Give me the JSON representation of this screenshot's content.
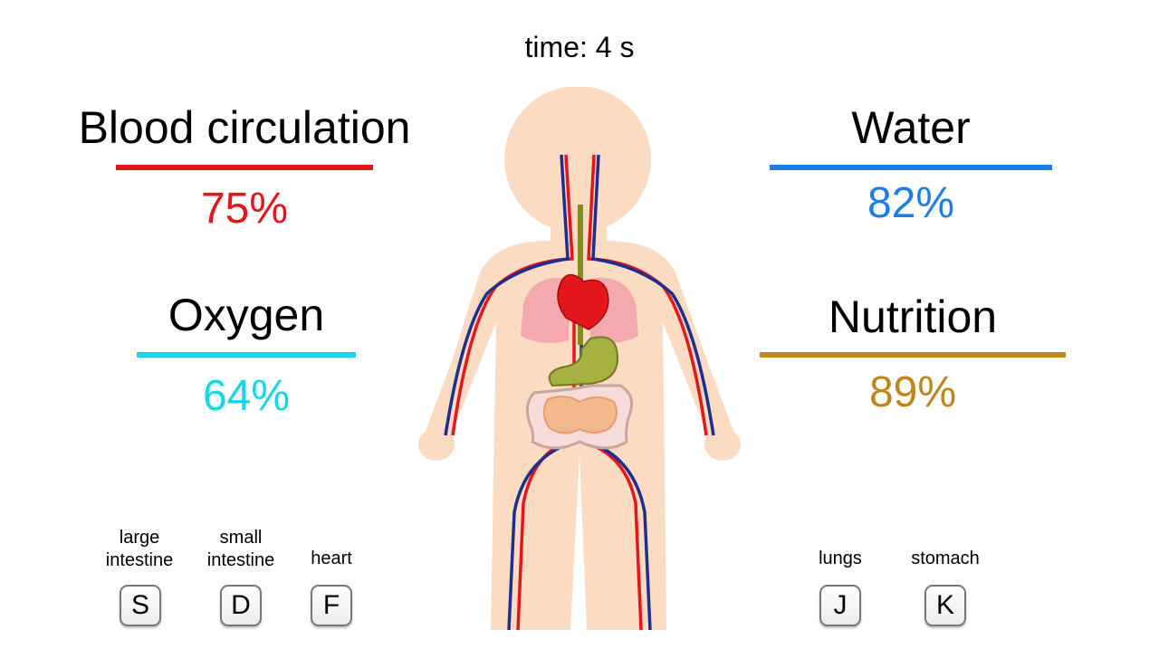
{
  "timer": "time: 4 s",
  "stats": {
    "blood": {
      "title": "Blood circulation",
      "value": "75%",
      "color": "#e4161c"
    },
    "oxygen": {
      "title": "Oxygen",
      "value": "64%",
      "color": "#18d4ec"
    },
    "water": {
      "title": "Water",
      "value": "82%",
      "color": "#1c7fe8"
    },
    "nutrition": {
      "title": "Nutrition",
      "value": "89%",
      "color": "#c0861c"
    }
  },
  "keys": [
    {
      "label": "large intestine",
      "key": "S"
    },
    {
      "label": "small intestine",
      "key": "D"
    },
    {
      "label": "heart",
      "key": "F"
    },
    {
      "label": "lungs",
      "key": "J"
    },
    {
      "label": "stomach",
      "key": "K"
    }
  ]
}
